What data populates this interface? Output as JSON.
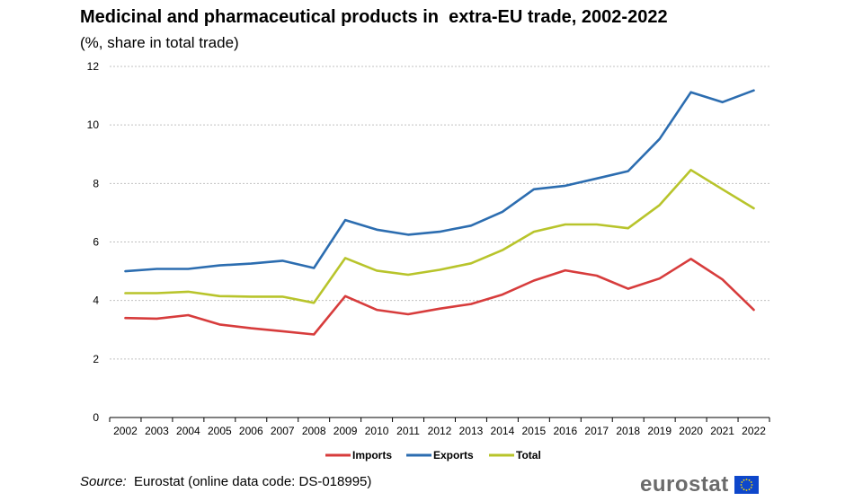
{
  "title": "Medicinal and pharmaceutical products in  extra-EU trade, 2002-2022",
  "subtitle": "(%, share in total trade)",
  "source_label": "Source:",
  "source_text": "Eurostat (online data code: DS-018995)",
  "logo_text": "eurostat",
  "chart_data": {
    "type": "line",
    "title": "Medicinal and pharmaceutical products in  extra-EU trade, 2002-2022",
    "subtitle": "(%, share in total trade)",
    "x": [
      "2002",
      "2003",
      "2004",
      "2005",
      "2006",
      "2007",
      "2008",
      "2009",
      "2010",
      "2011",
      "2012",
      "2013",
      "2014",
      "2015",
      "2016",
      "2017",
      "2018",
      "2019",
      "2020",
      "2021",
      "2022"
    ],
    "series": [
      {
        "name": "Imports",
        "color": "#d73c3c",
        "values": [
          3.4,
          3.38,
          3.5,
          3.18,
          3.05,
          2.95,
          2.84,
          4.15,
          3.68,
          3.53,
          3.72,
          3.88,
          4.2,
          4.68,
          5.03,
          4.85,
          4.4,
          4.75,
          5.42,
          4.72,
          3.68
        ]
      },
      {
        "name": "Exports",
        "color": "#2c6db0",
        "values": [
          5.0,
          5.08,
          5.08,
          5.2,
          5.26,
          5.36,
          5.11,
          6.75,
          6.42,
          6.25,
          6.35,
          6.56,
          7.03,
          7.8,
          7.92,
          8.17,
          8.42,
          9.52,
          11.12,
          10.78,
          11.18
        ]
      },
      {
        "name": "Total",
        "color": "#b8c42b",
        "values": [
          4.25,
          4.25,
          4.3,
          4.15,
          4.13,
          4.13,
          3.92,
          5.45,
          5.02,
          4.88,
          5.05,
          5.27,
          5.72,
          6.35,
          6.6,
          6.6,
          6.47,
          7.26,
          8.46,
          7.8,
          7.15
        ]
      }
    ],
    "ylim": [
      0,
      12
    ],
    "yticks": [
      0,
      2,
      4,
      6,
      8,
      10,
      12
    ],
    "grid": true,
    "legend": "bottom"
  }
}
